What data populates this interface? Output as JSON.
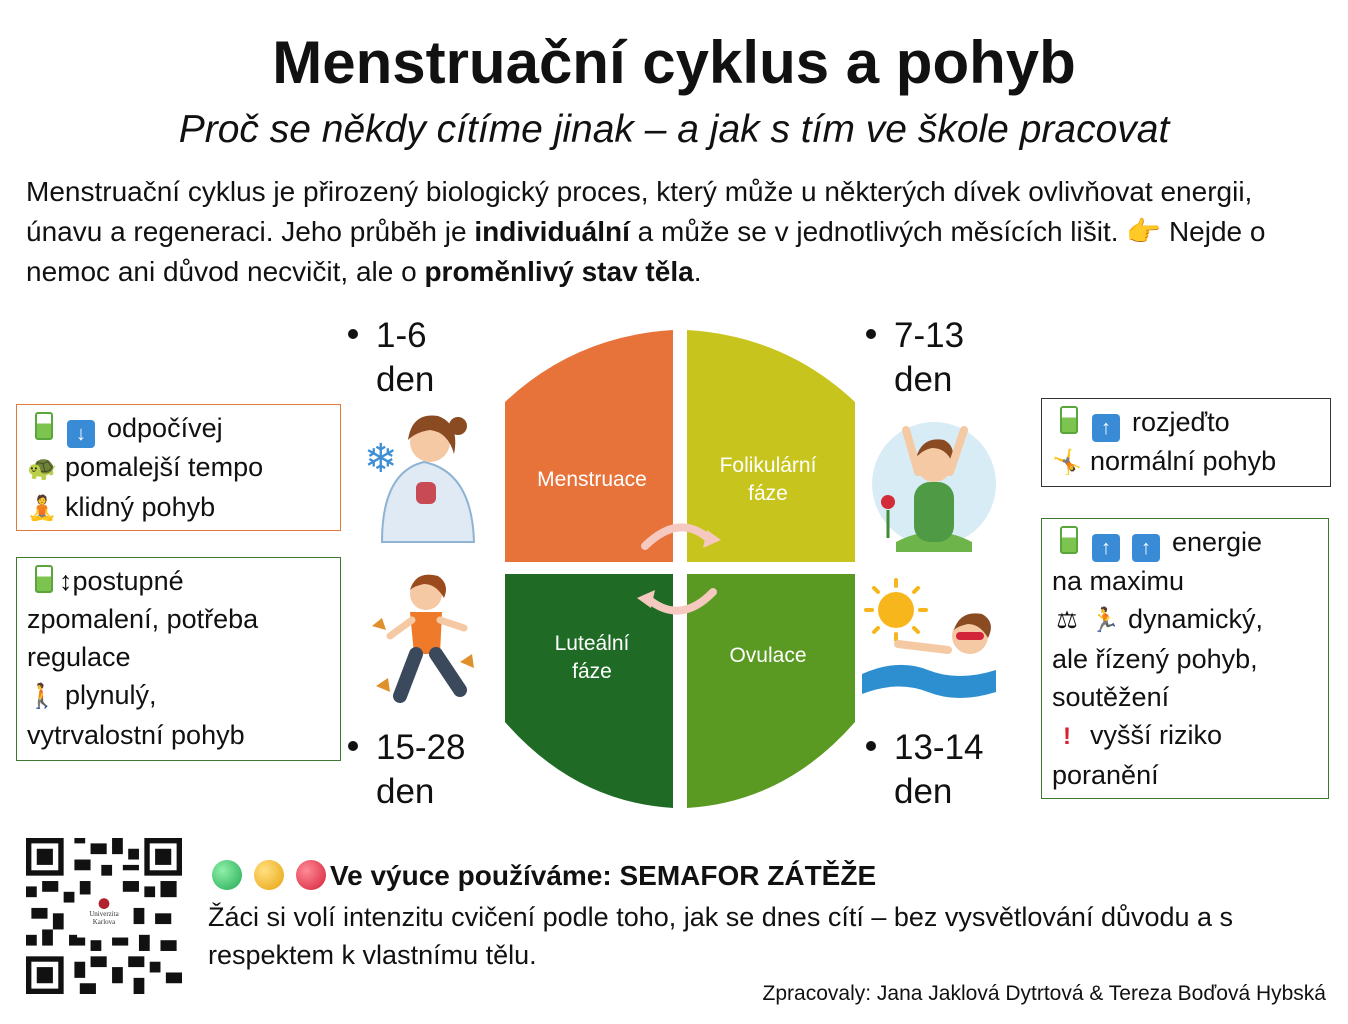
{
  "title": "Menstruační cyklus a pohyb",
  "subtitle": "Proč se někdy cítíme jinak – a jak s tím ve škole pracovat",
  "intro": {
    "part1": "Menstruační cyklus je přirozený biologický proces, který může u některých dívek ovlivňovat energii, únavu a regeneraci. Jeho průběh je ",
    "bold1": "individuální",
    "part2": " a může se v jednotlivých měsících lišit. ",
    "part3": " Nejde o nemoc ani důvod necvičit, ale o ",
    "bold2": "proměnlivý stav těla",
    "part4": "."
  },
  "phases": [
    {
      "name": "Menstruace",
      "color": "#e8733a"
    },
    {
      "name": "Folikulární fáze",
      "color": "#c8c41e"
    },
    {
      "name": "Luteální fáze",
      "color": "#1f6b26"
    },
    {
      "name": "Ovulace",
      "color": "#5a9a22"
    }
  ],
  "days": [
    {
      "range": "1-6",
      "unit": "den"
    },
    {
      "range": "7-13",
      "unit": "den"
    },
    {
      "range": "15-28",
      "unit": "den"
    },
    {
      "range": "13-14",
      "unit": "den"
    }
  ],
  "boxes": {
    "menstruace": [
      "odpočívej",
      "pomalejší tempo",
      "klidný pohyb"
    ],
    "luteal": [
      "postupné",
      "zpomalení, potřeba",
      "regulace",
      "plynulý,",
      "vytrvalostní pohyb"
    ],
    "folikular": [
      "rozjeďto",
      "normální pohyb"
    ],
    "ovulace": [
      "energie",
      "na maximu",
      "dynamický,",
      "ale řízený pohyb,",
      "soutěžení",
      "vyšší riziko",
      "poranění"
    ]
  },
  "semafor": {
    "title": "Ve výuce používáme: SEMAFOR ZÁTĚŽE",
    "text": "Žáci si volí intenzitu cvičení podle toho, jak se dnes cítí – bez vysvětlování důvodu a s respektem k vlastnímu tělu.",
    "colors": [
      "#3cc46a",
      "#f2b818",
      "#e8344a"
    ]
  },
  "qr_label": [
    "Univerzita",
    "Karlova"
  ],
  "credit": "Zpracovaly: Jana Jaklová Dytrtová & Tereza Boďová Hybská"
}
